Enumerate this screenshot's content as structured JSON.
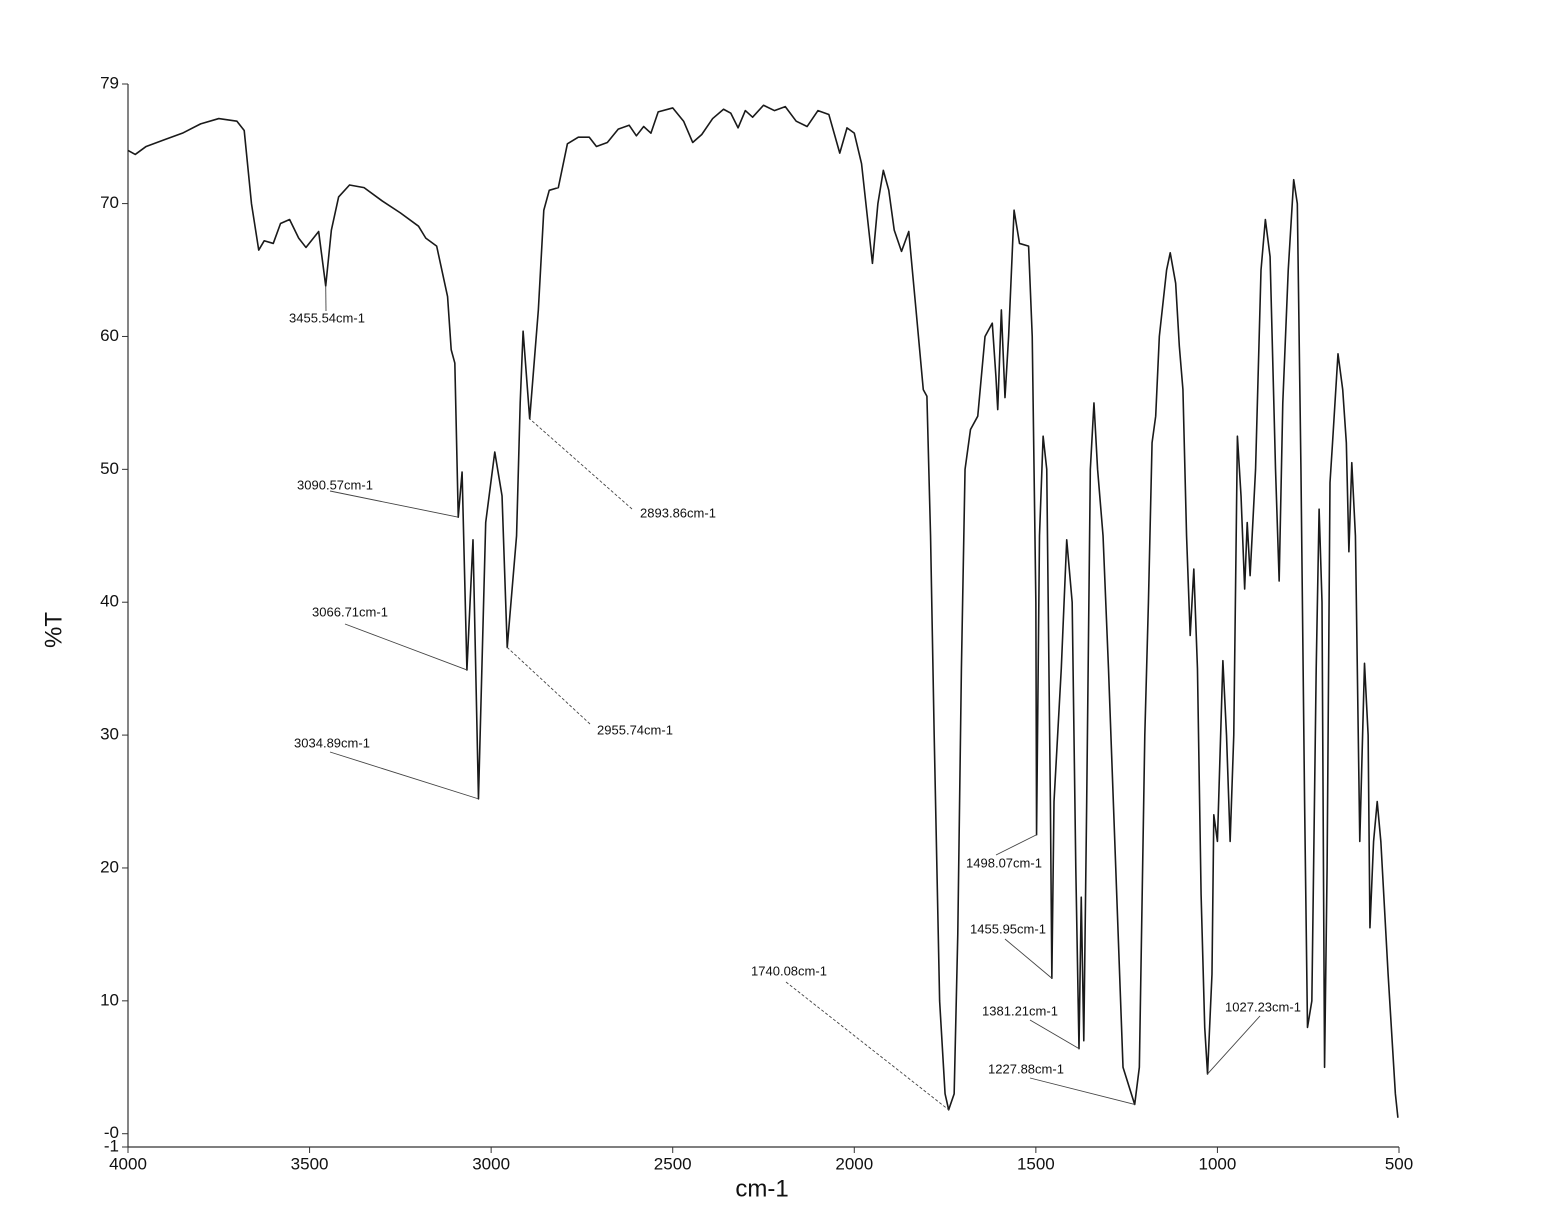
{
  "chart_data": {
    "type": "line",
    "x_label": "cm-1",
    "y_label": "%T",
    "xlim": [
      4000,
      500
    ],
    "ylim": [
      -1,
      79
    ],
    "xticks": [
      4000,
      3500,
      3000,
      2500,
      2000,
      1500,
      1000,
      500
    ],
    "yticks": [
      79,
      70,
      60,
      50,
      40,
      30,
      20,
      10,
      {
        "value": 0,
        "label": "-0"
      },
      -1
    ],
    "grid": false,
    "x": [
      4000,
      3980,
      3950,
      3900,
      3850,
      3800,
      3750,
      3700,
      3680,
      3660,
      3640,
      3625,
      3600,
      3580,
      3555,
      3530,
      3510,
      3475,
      3455.54,
      3440,
      3420,
      3390,
      3350,
      3300,
      3250,
      3200,
      3180,
      3150,
      3120,
      3110,
      3100,
      3090.57,
      3080,
      3066.71,
      3050,
      3034.89,
      3015,
      2990,
      2970,
      2955.74,
      2930,
      2920,
      2912,
      2893.86,
      2870,
      2855,
      2840,
      2815,
      2790,
      2760,
      2730,
      2710,
      2680,
      2650,
      2620,
      2600,
      2580,
      2560,
      2540,
      2500,
      2470,
      2445,
      2420,
      2390,
      2360,
      2340,
      2320,
      2300,
      2280,
      2250,
      2220,
      2190,
      2160,
      2130,
      2100,
      2070,
      2040,
      2020,
      2000,
      1980,
      1960,
      1950,
      1935,
      1920,
      1905,
      1890,
      1870,
      1850,
      1830,
      1810,
      1800,
      1790,
      1780,
      1765,
      1750,
      1740.08,
      1725,
      1715,
      1705,
      1695,
      1680,
      1660,
      1640,
      1620,
      1610,
      1605,
      1595,
      1585,
      1575,
      1560,
      1545,
      1520,
      1510,
      1500,
      1498.07,
      1490,
      1480,
      1470,
      1460,
      1455.95,
      1450,
      1430,
      1415,
      1400,
      1390,
      1381.21,
      1375,
      1368,
      1360,
      1350,
      1340,
      1330,
      1315,
      1300,
      1280,
      1260,
      1227.88,
      1215,
      1200,
      1190,
      1180,
      1170,
      1160,
      1140,
      1130,
      1115,
      1105,
      1095,
      1085,
      1075,
      1065,
      1055,
      1045,
      1035,
      1027.23,
      1015,
      1010,
      1000,
      985,
      975,
      965,
      955,
      945,
      935,
      925,
      918,
      910,
      895,
      880,
      868,
      855,
      840,
      830,
      820,
      805,
      790,
      780,
      770,
      760,
      752,
      740,
      728,
      720,
      712,
      705,
      698,
      690,
      683,
      668,
      655,
      645,
      638,
      630,
      620,
      608,
      595,
      585,
      580,
      570,
      560,
      550,
      530,
      510,
      503
    ],
    "series": [
      {
        "color": "#1a1a1a",
        "values": [
          74.0,
          73.7,
          74.3,
          74.8,
          75.3,
          76.0,
          76.4,
          76.2,
          75.5,
          70.0,
          66.5,
          67.2,
          67.0,
          68.5,
          68.8,
          67.4,
          66.7,
          67.9,
          63.8,
          68.0,
          70.5,
          71.4,
          71.2,
          70.2,
          69.3,
          68.3,
          67.4,
          66.8,
          63.0,
          59.0,
          58.0,
          46.4,
          49.8,
          34.9,
          44.7,
          25.2,
          46.0,
          51.3,
          48.0,
          36.6,
          45.0,
          55.0,
          60.4,
          53.8,
          62.0,
          69.5,
          71.0,
          71.2,
          74.5,
          75.0,
          75.0,
          74.3,
          74.6,
          75.6,
          75.9,
          75.1,
          75.8,
          75.3,
          76.9,
          77.2,
          76.2,
          74.6,
          75.2,
          76.4,
          77.1,
          76.8,
          75.7,
          77.0,
          76.5,
          77.4,
          77.0,
          77.3,
          76.2,
          75.8,
          77.0,
          76.7,
          73.8,
          75.7,
          75.3,
          73.0,
          68.0,
          65.5,
          70.0,
          72.5,
          71.0,
          68.0,
          66.4,
          67.9,
          62.0,
          56.0,
          55.5,
          45.0,
          30.0,
          10.0,
          3.0,
          1.8,
          3.0,
          15.0,
          35.0,
          50.0,
          53.0,
          54.0,
          60.0,
          61.0,
          57.0,
          54.5,
          62.0,
          55.4,
          60.0,
          69.5,
          67.0,
          66.8,
          60.0,
          40.0,
          22.5,
          45.0,
          52.5,
          50.0,
          25.0,
          11.7,
          25.0,
          35.0,
          44.7,
          40.0,
          20.0,
          6.4,
          17.8,
          7.0,
          25.0,
          50.0,
          55.0,
          50.0,
          45.0,
          35.0,
          20.0,
          5.0,
          2.2,
          5.0,
          30.0,
          40.0,
          52.0,
          54.0,
          60.0,
          65.0,
          66.3,
          64.0,
          59.3,
          56.0,
          45.0,
          37.5,
          42.5,
          35.0,
          18.0,
          8.0,
          4.5,
          12.0,
          24.0,
          22.0,
          35.6,
          30.0,
          22.0,
          30.0,
          52.5,
          48.0,
          41.0,
          46.0,
          42.0,
          50.0,
          65.0,
          68.8,
          66.0,
          50.0,
          41.6,
          55.0,
          65.0,
          71.8,
          70.0,
          50.0,
          25.0,
          8.0,
          10.0,
          35.0,
          47.0,
          40.0,
          5.0,
          20.0,
          49.0,
          52.0,
          58.7,
          56.0,
          52.0,
          43.8,
          50.5,
          45.0,
          22.0,
          35.4,
          30.0,
          15.5,
          22.0,
          25.0,
          22.0,
          12.0,
          3.0,
          1.2
        ]
      }
    ],
    "annotations": [
      {
        "text": "3455.54cm-1",
        "x": 3455.54,
        "y": 63.8
      },
      {
        "text": "3090.57cm-1",
        "x": 3090.57,
        "y": 46.4
      },
      {
        "text": "2893.86cm-1",
        "x": 2893.86,
        "y": 53.8
      },
      {
        "text": "3066.71cm-1",
        "x": 3066.71,
        "y": 34.9
      },
      {
        "text": "2955.74cm-1",
        "x": 2955.74,
        "y": 36.6
      },
      {
        "text": "3034.89cm-1",
        "x": 3034.89,
        "y": 25.2
      },
      {
        "text": "1498.07cm-1",
        "x": 1498.07,
        "y": 22.5
      },
      {
        "text": "1455.95cm-1",
        "x": 1455.95,
        "y": 11.7
      },
      {
        "text": "1740.08cm-1",
        "x": 1740.08,
        "y": 1.8
      },
      {
        "text": "1381.21cm-1",
        "x": 1381.21,
        "y": 6.4
      },
      {
        "text": "1027.23cm-1",
        "x": 1027.23,
        "y": 4.5
      },
      {
        "text": "1227.88cm-1",
        "x": 1227.88,
        "y": 2.2
      }
    ]
  }
}
